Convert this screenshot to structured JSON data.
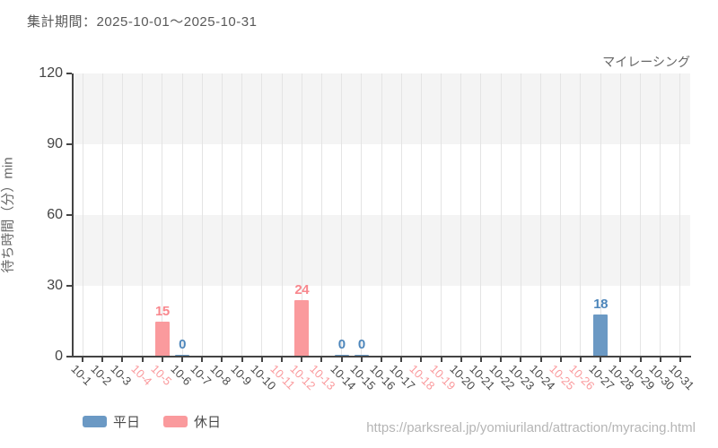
{
  "header": {
    "title": "集計期間：2025-10-01～2025-10-31"
  },
  "chart_label": "マイレーシング",
  "footer": {
    "url": "https://parksreal.jp/yomiuriland/attraction/myracing.html"
  },
  "colors": {
    "weekday_bar": "#6b99c4",
    "weekday_text": "#4d86bb",
    "holiday_bar": "#fa9a9d",
    "holiday_text": "#f8878d",
    "axis": "#444444",
    "band_gray": "#f4f4f4",
    "gridline": "#e4e4e4",
    "tick_label": "#4a4a4a"
  },
  "chart_data": {
    "type": "bar",
    "title": "マイレーシング",
    "xlabel": "",
    "ylabel": "待ち時間（分）min",
    "ylim": [
      0,
      120
    ],
    "yticks": [
      0,
      30,
      60,
      90,
      120
    ],
    "grid": "vertical-gridlines-with-alternating-horizontal-bands",
    "legend_position": "bottom-left",
    "categories": [
      "10-1",
      "10-2",
      "10-3",
      "10-4",
      "10-5",
      "10-6",
      "10-7",
      "10-8",
      "10-9",
      "10-10",
      "10-11",
      "10-12",
      "10-13",
      "10-14",
      "10-15",
      "10-16",
      "10-17",
      "10-18",
      "10-19",
      "10-20",
      "10-21",
      "10-22",
      "10-23",
      "10-24",
      "10-25",
      "10-26",
      "10-27",
      "10-28",
      "10-29",
      "10-30",
      "10-31"
    ],
    "holiday_categories": [
      "10-4",
      "10-5",
      "10-11",
      "10-12",
      "10-13",
      "10-18",
      "10-19",
      "10-25",
      "10-26"
    ],
    "series": [
      {
        "name": "平日",
        "color": "#6b99c4",
        "label_color": "#4d86bb",
        "points": [
          {
            "x": "10-6",
            "y": 0
          },
          {
            "x": "10-14",
            "y": 0
          },
          {
            "x": "10-15",
            "y": 0
          },
          {
            "x": "10-27",
            "y": 18
          }
        ]
      },
      {
        "name": "休日",
        "color": "#fa9a9d",
        "label_color": "#f8878d",
        "points": [
          {
            "x": "10-5",
            "y": 15
          },
          {
            "x": "10-12",
            "y": 24
          }
        ]
      }
    ]
  },
  "legend": {
    "items": [
      {
        "label": "平日",
        "color": "#6b99c4"
      },
      {
        "label": "休日",
        "color": "#fa9a9d"
      }
    ]
  }
}
